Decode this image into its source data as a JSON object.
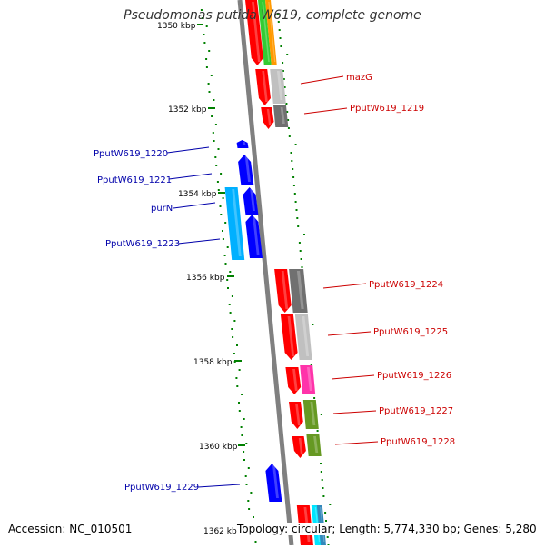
{
  "title": "Pseudomonas putida W619, complete genome",
  "footer": {
    "accession": "Accession: NC_010501",
    "topology": "Topology: circular; Length: 5,774,330 bp; Genes: 5,280"
  },
  "ticks": [
    "1350 kbp",
    "1352 kbp",
    "1354 kbp",
    "1356 kbp",
    "1358 kbp",
    "1360 kbp",
    "1362 kbp"
  ],
  "forward_labels": [
    "mazG",
    "PputW619_1219",
    "PputW619_1224",
    "PputW619_1225",
    "PputW619_1226",
    "PputW619_1227",
    "PputW619_1228"
  ],
  "reverse_labels": [
    "PputW619_1220",
    "PputW619_1221",
    "purN",
    "PputW619_1223",
    "PputW619_1229"
  ],
  "colors": {
    "forward_cds": "#ff0000",
    "reverse_cds": "#0000ff",
    "backbone": "#808080",
    "gc_dots": "#008000",
    "light_blue": "#00b0ff",
    "gray": "#808080",
    "light_gray": "#c0c0c0",
    "dark_gray": "#707070",
    "green": "#33cc33",
    "orange": "#ff9900",
    "magenta": "#ff33aa",
    "olive": "#669922",
    "cyan": "#00e5ff",
    "steel_blue": "#3388bb"
  }
}
